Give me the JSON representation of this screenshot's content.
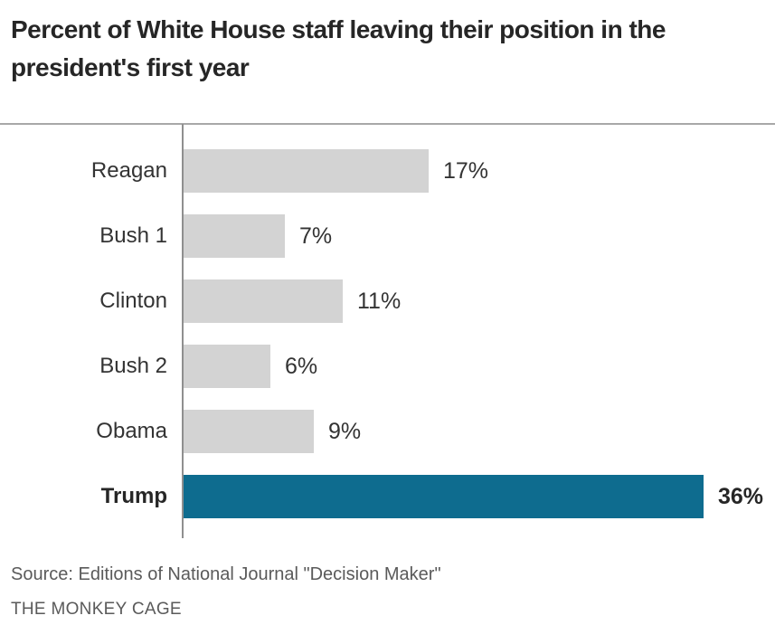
{
  "chart_data": {
    "type": "bar",
    "orientation": "horizontal",
    "title": "Percent of White House staff leaving their position in the president's first year",
    "title_lines": [
      "Percent of White House staff leaving their position in the",
      "president's first year"
    ],
    "categories": [
      "Reagan",
      "Bush 1",
      "Clinton",
      "Bush 2",
      "Obama",
      "Trump"
    ],
    "values": [
      17,
      7,
      11,
      6,
      9,
      36
    ],
    "value_labels": [
      "17%",
      "7%",
      "11%",
      "6%",
      "9%",
      "36%"
    ],
    "xlabel": "",
    "ylabel": "",
    "xlim": [
      0,
      41
    ],
    "grid": false,
    "legend": false,
    "data_labels": "outside-end",
    "highlight_category": "Trump",
    "bar_colors": [
      "#d3d3d3",
      "#d3d3d3",
      "#d3d3d3",
      "#d3d3d3",
      "#d3d3d3",
      "#0e6c8f"
    ],
    "colors": {
      "bar_default": "#d3d3d3",
      "bar_highlight": "#0e6c8f",
      "axis_line": "#8f8f8f",
      "top_rule": "#a8a8a8",
      "title_text": "#262626",
      "label_text": "#333333",
      "footer_text": "#5a5a5a"
    }
  },
  "footer": {
    "source": "Source: Editions of National Journal \"Decision Maker\"",
    "credit": "THE MONKEY CAGE"
  }
}
